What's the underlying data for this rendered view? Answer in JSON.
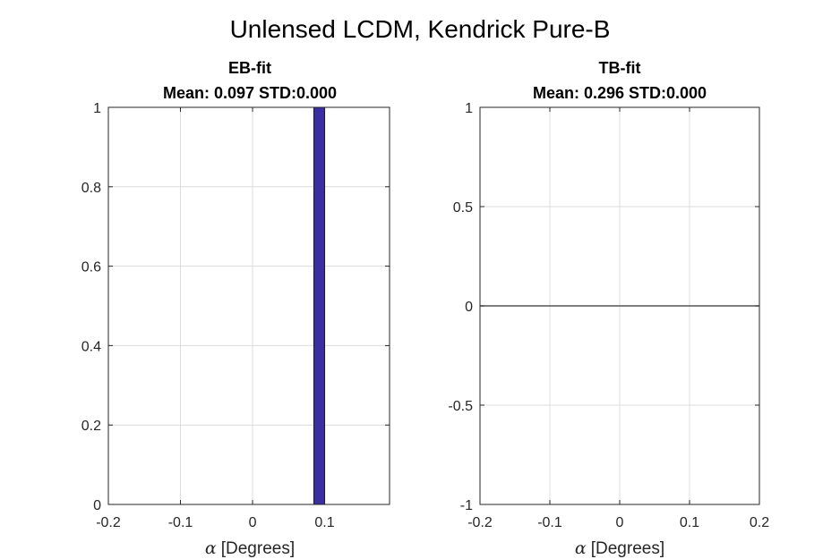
{
  "figure_title": "Unlensed LCDM, Kendrick Pure-B",
  "chart_data": [
    {
      "type": "bar",
      "title": "EB-fit",
      "subtitle": "Mean: 0.097 STD:0.000",
      "xlabel_symbol": "α",
      "xlabel": "[Degrees]",
      "ylabel": "",
      "xlim": [
        -0.2,
        0.19
      ],
      "ylim": [
        0,
        1
      ],
      "xticks": [
        -0.2,
        -0.1,
        0,
        0.1
      ],
      "xtick_labels": [
        "-0.2",
        "-0.1",
        "0",
        "0.1"
      ],
      "yticks": [
        0,
        0.2,
        0.4,
        0.6,
        0.8,
        1
      ],
      "ytick_labels": [
        "0",
        "0.2",
        "0.4",
        "0.6",
        "0.8",
        "1"
      ],
      "grid": true,
      "bars": [
        {
          "x_start": 0.085,
          "x_end": 0.1,
          "value": 1
        }
      ],
      "bar_color": "#3a2ea0"
    },
    {
      "type": "line",
      "title": "TB-fit",
      "subtitle": "Mean: 0.296 STD:0.000",
      "xlabel_symbol": "α",
      "xlabel": "[Degrees]",
      "ylabel": "",
      "xlim": [
        -0.2,
        0.2
      ],
      "ylim": [
        -1,
        1
      ],
      "xticks": [
        -0.2,
        -0.1,
        0,
        0.1,
        0.2
      ],
      "xtick_labels": [
        "-0.2",
        "-0.1",
        "0",
        "0.1",
        "0.2"
      ],
      "yticks": [
        -1,
        -0.5,
        0,
        0.5,
        1
      ],
      "ytick_labels": [
        "-1",
        "-0.5",
        "0",
        "0.5",
        "1"
      ],
      "grid": true,
      "series": [
        {
          "x": [
            -0.2,
            0.2
          ],
          "y": [
            0,
            0
          ]
        }
      ],
      "line_color": "#555555"
    }
  ]
}
